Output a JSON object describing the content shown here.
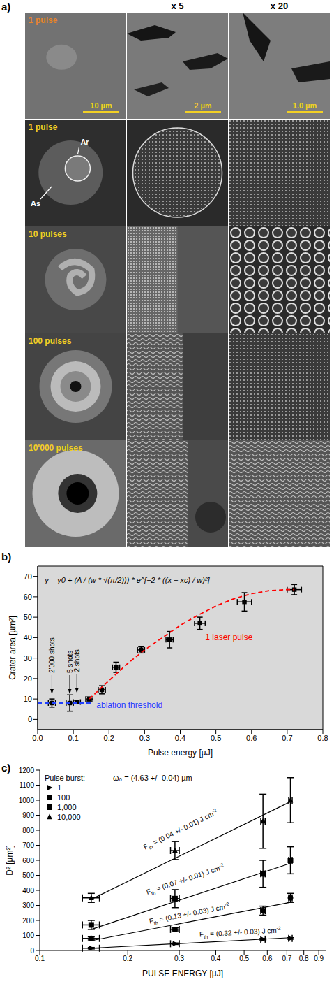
{
  "image_panel": {
    "label": "a)",
    "column_heads": [
      "x 5",
      "x 20"
    ],
    "rows": [
      {
        "label": "1 pulse",
        "color": "#e8842c"
      },
      {
        "label": "1 pulse",
        "color": "#f2d024"
      },
      {
        "label": "10 pulses",
        "color": "#f2d024"
      },
      {
        "label": "100 pulses",
        "color": "#f2d024"
      },
      {
        "label": "10'000 pulses",
        "color": "#f2d024"
      }
    ],
    "scale_bars": {
      "labels": [
        "10 µm",
        "2 µm",
        "1.0 µm"
      ],
      "color": "#f2d024"
    },
    "markers": [
      "Ar",
      "As"
    ]
  },
  "chart_data": [
    {
      "type": "scatter",
      "label": "b)",
      "x_label": "Pulse energy [µJ]",
      "y_label": "Crater area [µm²]",
      "equation": {
        "text": "y = y0 + (A / (w * √(π/2))) * e^[−2 * ((x − xc) / w)²]",
        "x": 0.02,
        "y": 68
      },
      "xlim": [
        0,
        0.8
      ],
      "xticks": [
        {
          "value": 0,
          "label": "0.0"
        },
        0.1,
        0.2,
        0.3,
        0.4,
        0.5,
        0.6,
        0.7,
        0.8
      ],
      "ylim": [
        -5,
        75
      ],
      "yticks": [
        0,
        10,
        20,
        30,
        40,
        50,
        60,
        70
      ],
      "grid": false,
      "series": [
        {
          "type": "scatter",
          "marker": "square",
          "color": "#000000",
          "x": [
            0.04,
            0.09,
            0.11,
            0.145,
            0.18,
            0.22,
            0.29,
            0.37,
            0.455,
            0.58,
            0.72
          ],
          "values": [
            8,
            8,
            8.5,
            10,
            14.5,
            25.5,
            34,
            39,
            47,
            57.5,
            63.5
          ],
          "x_error": [
            0.01,
            0.01,
            0.01,
            0.01,
            0.01,
            0.01,
            0.01,
            0.01,
            0.015,
            0.02,
            0.02
          ],
          "y_error": [
            2,
            4,
            0.8,
            1,
            2,
            2.5,
            1.5,
            4,
            3,
            4.5,
            2.5
          ]
        },
        {
          "type": "line",
          "line_style": "dashed",
          "color": "#ff0000",
          "x": [
            0.145,
            0.2,
            0.25,
            0.3,
            0.35,
            0.4,
            0.45,
            0.5,
            0.55,
            0.6,
            0.65,
            0.7,
            0.72
          ],
          "values": [
            10,
            19,
            27,
            34,
            40,
            46,
            51,
            55.5,
            59,
            61.5,
            63,
            63.5,
            63.5
          ],
          "label": {
            "text": "1 laser pulse",
            "x": 0.47,
            "y": 40
          }
        },
        {
          "type": "line",
          "line_style": "dashed",
          "color": "#2040ff",
          "x": [
            0,
            0.15
          ],
          "values": [
            8,
            8
          ],
          "label": {
            "text": "ablation threshold",
            "x": 0.165,
            "y": 7
          }
        }
      ],
      "arrows": [
        {
          "text": "2'000 shots",
          "x": 0.04,
          "y": 8
        },
        {
          "text": "5 shots",
          "x": 0.09,
          "y": 8
        },
        {
          "text": "2 shots",
          "x": 0.11,
          "y": 8.5
        }
      ]
    },
    {
      "type": "scatter",
      "label": "c)",
      "x_label": "PULSE ENERGY [µJ]",
      "y_label": "D² [µm²]",
      "log": "x",
      "xlim": [
        0.1,
        0.95
      ],
      "xticks": [
        0.1,
        0.2,
        0.3,
        0.4,
        0.5,
        0.6,
        0.7,
        0.8,
        0.9
      ],
      "ylim": [
        0,
        1200
      ],
      "yticks": [
        0,
        100,
        200,
        300,
        400,
        500,
        600,
        700,
        800,
        900,
        1000,
        1100,
        1200
      ],
      "grid": false,
      "legend": "top-left",
      "legend_title": "Pulse burst:",
      "annotation": "ω₀ = (4.63 +/- 0.04) µm",
      "series": [
        {
          "name": "1",
          "marker": "triangle-right",
          "color": "#000000",
          "x": [
            0.15,
            0.29,
            0.58,
            0.72
          ],
          "values": [
            15,
            45,
            75,
            80
          ],
          "x_error": [
            0.01,
            0.01,
            0.01,
            0.01
          ],
          "y_error": [
            5,
            5,
            5,
            5
          ],
          "fit": {
            "x": [
              0.15,
              0.72
            ],
            "values": [
              15,
              85
            ]
          },
          "fit_label": {
            "symbol": "F",
            "sub": "th",
            "text": "= (0.32 +/- 0.03) J cm",
            "sup": "-2"
          }
        },
        {
          "name": "100",
          "marker": "circle",
          "color": "#000000",
          "x": [
            0.15,
            0.29,
            0.58,
            0.72
          ],
          "values": [
            80,
            140,
            265,
            350
          ],
          "x_error": [
            0.01,
            0.01,
            0.01,
            0.01
          ],
          "y_error": [
            10,
            10,
            30,
            30
          ],
          "fit": {
            "x": [
              0.15,
              0.72
            ],
            "values": [
              65,
              320
            ]
          },
          "fit_label": {
            "symbol": "F",
            "sub": "th",
            "text": "= (0.13 +/- 0.03) J cm",
            "sup": "-2"
          }
        },
        {
          "name": "1,000",
          "marker": "square",
          "color": "#000000",
          "x": [
            0.15,
            0.29,
            0.58,
            0.72
          ],
          "values": [
            170,
            345,
            510,
            600
          ],
          "x_error": [
            0.01,
            0.01,
            0.01,
            0.01
          ],
          "y_error": [
            30,
            60,
            90,
            90
          ],
          "fit": {
            "x": [
              0.15,
              0.72
            ],
            "values": [
              140,
              580
            ]
          },
          "fit_label": {
            "symbol": "F",
            "sub": "th",
            "text": "= (0.07 +/- 0.01) J cm",
            "sup": "-2"
          }
        },
        {
          "name": "10,000",
          "marker": "triangle",
          "color": "#000000",
          "x": [
            0.15,
            0.29,
            0.58,
            0.72
          ],
          "values": [
            350,
            665,
            860,
            1000
          ],
          "x_error": [
            0.01,
            0.01,
            0.01,
            0.01
          ],
          "y_error": [
            30,
            60,
            180,
            150
          ],
          "fit": {
            "x": [
              0.15,
              0.72
            ],
            "values": [
              340,
              990
            ]
          },
          "fit_label": {
            "symbol": "F",
            "sub": "th",
            "text": "= (0.04 +/- 0.01) J cm",
            "sup": "-2"
          }
        }
      ]
    }
  ]
}
